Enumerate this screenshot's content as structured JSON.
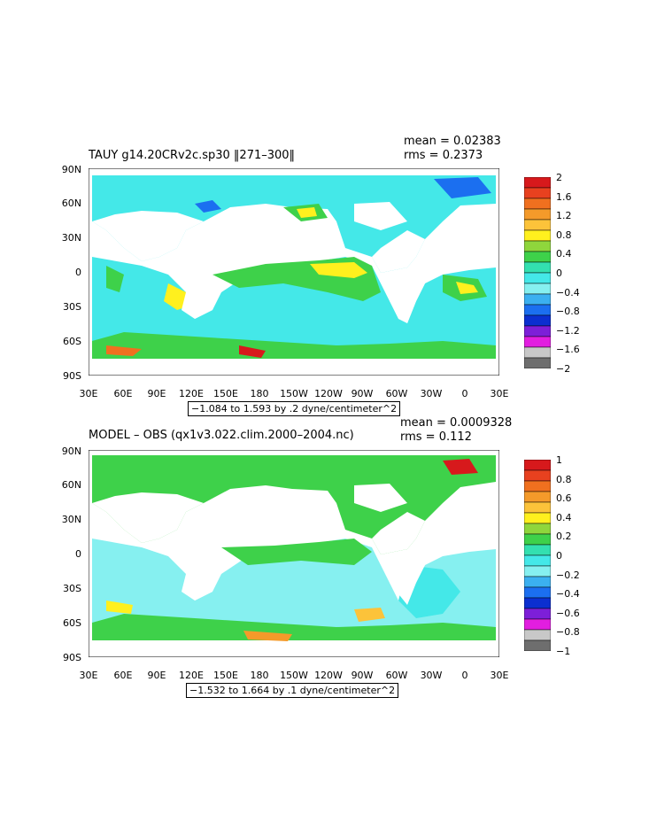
{
  "lon_labels": [
    "30E",
    "60E",
    "90E",
    "120E",
    "150E",
    "180",
    "150W",
    "120W",
    "90W",
    "60W",
    "30W",
    "0",
    "30E"
  ],
  "lat_labels": [
    "90N",
    "60N",
    "30N",
    "0",
    "30S",
    "60S",
    "90S"
  ],
  "panels": [
    {
      "title": "TAUY g14.20CRv2c.sp30 ‖271–300‖",
      "mean_label": "mean = 0.02383",
      "rms_label": "rms = 0.2373",
      "range_label": "−1.084 to 1.593 by .2 dyne/centimeter^2",
      "colorbar_labels": [
        "2",
        "1.6",
        "1.2",
        "0.8",
        "0.4",
        "0",
        "−0.4",
        "−0.8",
        "−1.2",
        "−1.6",
        "−2"
      ],
      "colorbar_colors": [
        "#d7191c",
        "#e8411f",
        "#f0701f",
        "#f49a2a",
        "#fcc33a",
        "#fff01e",
        "#8fd63c",
        "#3ed14a",
        "#33e0b0",
        "#44e8e8",
        "#86f0f0",
        "#3bb0f0",
        "#1b6ff0",
        "#0b2fd0",
        "#7d1fd8",
        "#e21ee0",
        "#c8c8c8",
        "#6e6e6e"
      ]
    },
    {
      "title": "MODEL – OBS (qx1v3.022.clim.2000–2004.nc)",
      "mean_label": "mean = 0.0009328",
      "rms_label": "rms = 0.112",
      "range_label": "−1.532 to 1.664 by .1 dyne/centimeter^2",
      "colorbar_labels": [
        "1",
        "0.8",
        "0.6",
        "0.4",
        "0.2",
        "0",
        "−0.2",
        "−0.4",
        "−0.6",
        "−0.8",
        "−1"
      ],
      "colorbar_colors": [
        "#d7191c",
        "#e8411f",
        "#f0701f",
        "#f49a2a",
        "#fcc33a",
        "#fff01e",
        "#8fd63c",
        "#3ed14a",
        "#33e0b0",
        "#44e8e8",
        "#86f0f0",
        "#3bb0f0",
        "#1b6ff0",
        "#0b2fd0",
        "#7d1fd8",
        "#e21ee0",
        "#c8c8c8",
        "#6e6e6e"
      ]
    }
  ]
}
